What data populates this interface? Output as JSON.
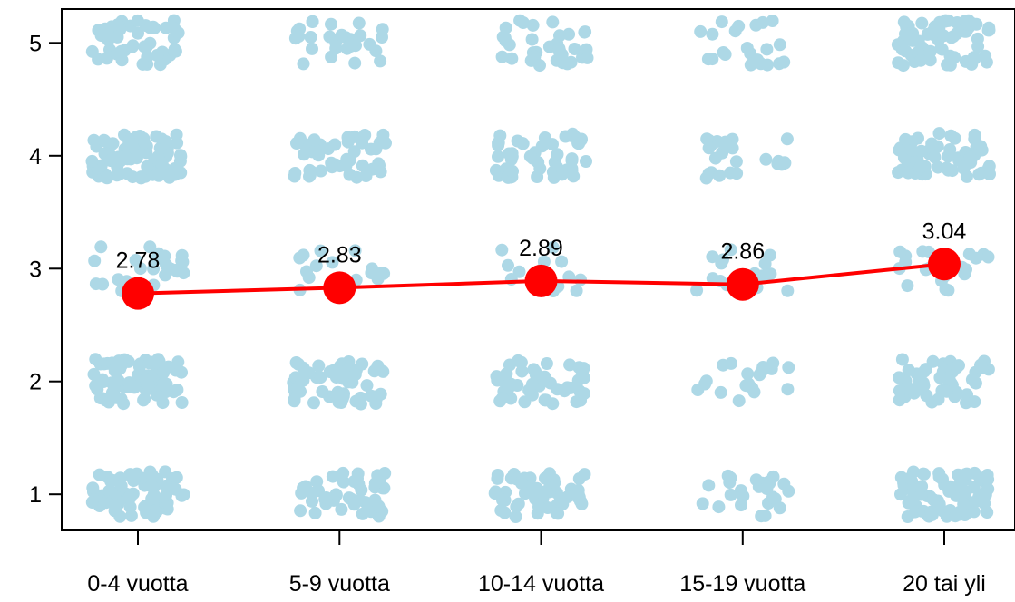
{
  "chart_data": {
    "type": "line",
    "categories": [
      "0-4 vuotta",
      "5-9 vuotta",
      "10-14 vuotta",
      "15-19 vuotta",
      "20 tai yli"
    ],
    "ylim": [
      0.68,
      5.3
    ],
    "y_ticks": [
      1,
      2,
      3,
      4,
      5
    ],
    "grid": false,
    "mean_series": {
      "values": [
        2.78,
        2.83,
        2.89,
        2.86,
        3.04
      ],
      "labels": [
        "2.78",
        "2.83",
        "2.89",
        "2.86",
        "3.04"
      ],
      "color": "#ff0000"
    },
    "jitter": {
      "color": "#add8e6",
      "counts_per_category_by_level": [
        {
          "1": 70,
          "2": 80,
          "3": 25,
          "4": 75,
          "5": 45
        },
        {
          "1": 45,
          "2": 55,
          "3": 18,
          "4": 45,
          "5": 30
        },
        {
          "1": 55,
          "2": 45,
          "3": 15,
          "4": 50,
          "5": 35
        },
        {
          "1": 25,
          "2": 20,
          "3": 18,
          "4": 25,
          "5": 22
        },
        {
          "1": 75,
          "2": 55,
          "3": 22,
          "4": 65,
          "5": 70
        }
      ]
    },
    "title": "",
    "xlabel": "",
    "ylabel": ""
  }
}
